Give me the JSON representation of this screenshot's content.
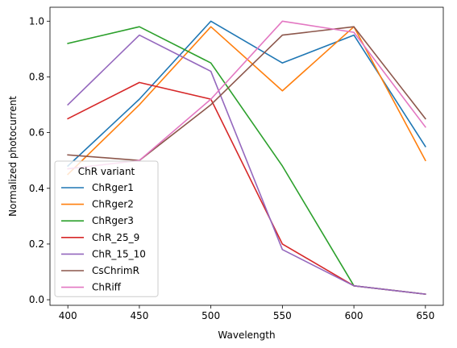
{
  "chart_data": {
    "type": "line",
    "title": "",
    "xlabel": "Wavelength",
    "ylabel": "Normalized photocurrent",
    "x": [
      400,
      450,
      500,
      550,
      600,
      650
    ],
    "xticks": [
      400,
      450,
      500,
      550,
      600,
      650
    ],
    "yticks": [
      0.0,
      0.2,
      0.4,
      0.6,
      0.8,
      1.0
    ],
    "ytick_labels": [
      "0.0",
      "0.2",
      "0.4",
      "0.6",
      "0.8",
      "1.0"
    ],
    "xlim": [
      387.5,
      662.5
    ],
    "ylim": [
      -0.02,
      1.05
    ],
    "grid": false,
    "legend_title": "ChR variant",
    "legend_placement": "lower-left",
    "series": [
      {
        "name": "ChRger1",
        "color": "#1f77b4",
        "values": [
          0.48,
          0.72,
          1.0,
          0.85,
          0.95,
          0.55
        ]
      },
      {
        "name": "ChRger2",
        "color": "#ff7f0e",
        "values": [
          0.45,
          0.7,
          0.98,
          0.75,
          0.98,
          0.5
        ]
      },
      {
        "name": "ChRger3",
        "color": "#2ca02c",
        "values": [
          0.92,
          0.98,
          0.85,
          0.48,
          0.05,
          0.02
        ]
      },
      {
        "name": "ChR_25_9",
        "color": "#d62728",
        "values": [
          0.65,
          0.78,
          0.72,
          0.2,
          0.05,
          0.02
        ]
      },
      {
        "name": "ChR_15_10",
        "color": "#9467bd",
        "values": [
          0.7,
          0.95,
          0.82,
          0.18,
          0.05,
          0.02
        ]
      },
      {
        "name": "CsChrimR",
        "color": "#8c564b",
        "values": [
          0.52,
          0.5,
          0.7,
          0.95,
          0.98,
          0.65
        ]
      },
      {
        "name": "ChRiff",
        "color": "#e377c2",
        "values": [
          0.47,
          0.5,
          0.72,
          1.0,
          0.96,
          0.62
        ]
      }
    ]
  }
}
